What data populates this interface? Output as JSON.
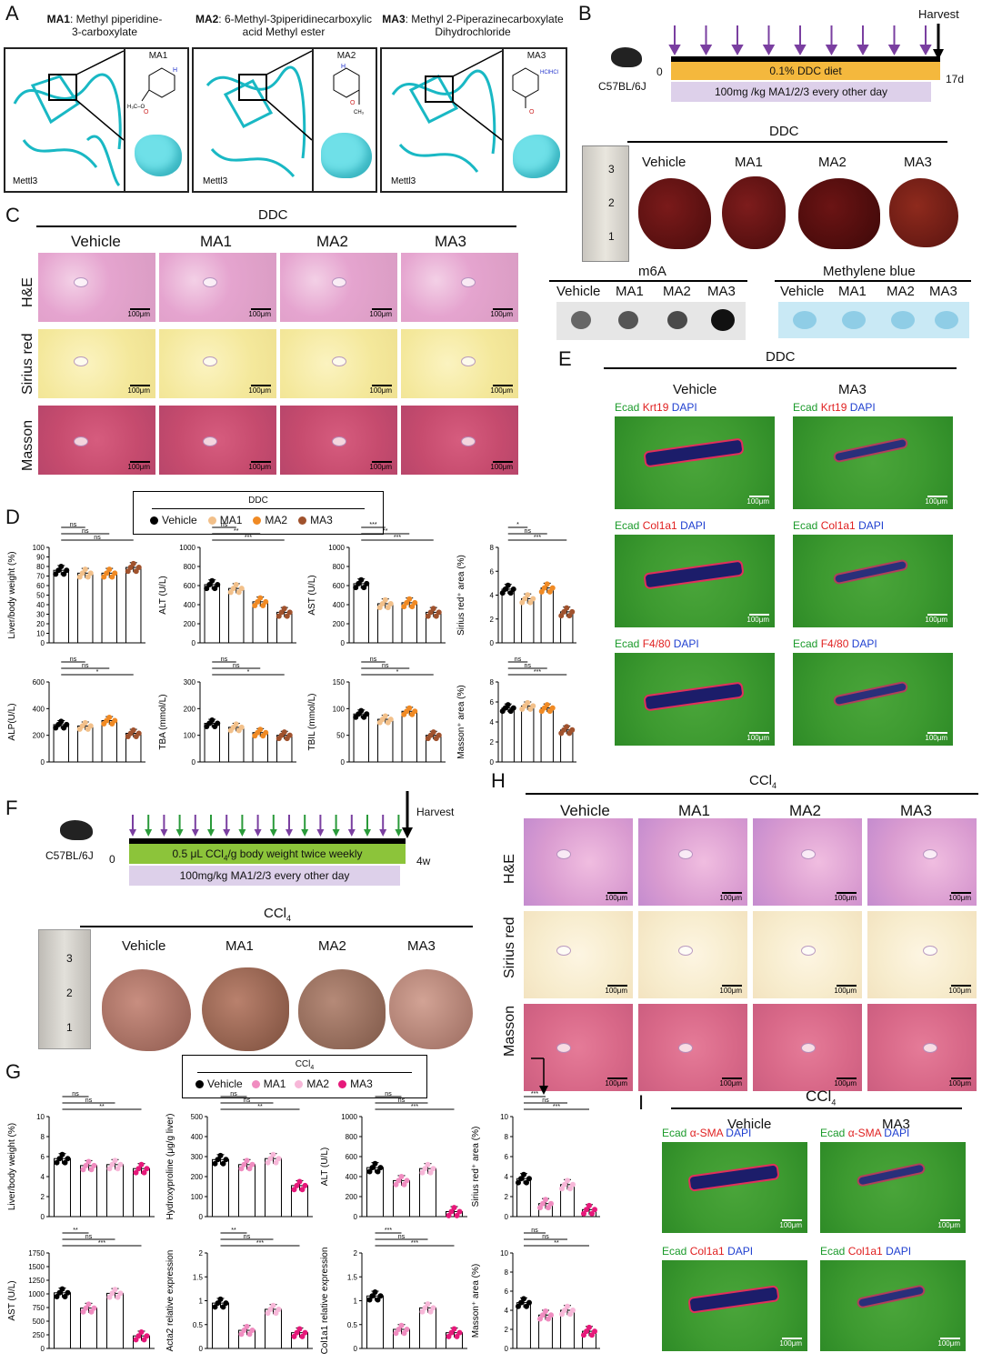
{
  "panels": {
    "A": {
      "label": "A",
      "compounds": [
        {
          "name_bold": "MA1",
          "name_rest": ": Methyl piperidine-",
          "line2": "3-carboxylate",
          "struct_label": "MA1",
          "protein": "Mettl3",
          "ester": "H₃C–O"
        },
        {
          "name_bold": "MA2",
          "name_rest": ": 6-Methyl-3piperidinecarboxylic",
          "line2": "acid Methyl ester",
          "struct_label": "MA2",
          "protein": "Mettl3",
          "ester": "CH₃"
        },
        {
          "name_bold": "MA3",
          "name_rest": ": Methyl 2-Piperazinecarboxylate",
          "line2": "Dihydrochloride",
          "struct_label": "MA3",
          "protein": "Mettl3",
          "ester": "HClHCl"
        }
      ]
    },
    "B": {
      "label": "B",
      "strain": "C57BL/6J",
      "harvest": "Harvest",
      "start": "0",
      "end": "17d",
      "diet_bar": "0.1% DDC diet",
      "treat_bar": "100mg /kg MA1/2/3   every other day",
      "group_header": "DDC",
      "groups": [
        "Vehicle",
        "MA1",
        "MA2",
        "MA3"
      ],
      "ruler_marks": [
        "3",
        "2",
        "1"
      ],
      "m6a_title": "m6A",
      "mb_title": "Methylene blue",
      "blot_labels": [
        "Vehicle",
        "MA1",
        "MA2",
        "MA3"
      ]
    },
    "C": {
      "label": "C",
      "header": "DDC",
      "groups": [
        "Vehicle",
        "MA1",
        "MA2",
        "MA3"
      ],
      "rows": [
        "H&E",
        "Sirius red",
        "Masson"
      ],
      "scale": "100μm"
    },
    "D": {
      "label": "D",
      "legend_title": "DDC",
      "legend": [
        "Vehicle",
        "MA1",
        "MA2",
        "MA3"
      ],
      "colors": [
        "#000000",
        "#f2c08a",
        "#f08a24",
        "#a0522d"
      ]
    },
    "E": {
      "label": "E",
      "header": "DDC",
      "groups": [
        "Vehicle",
        "MA3"
      ],
      "stains": [
        {
          "a": "Ecad",
          "b": "Krt19",
          "c": "DAPI"
        },
        {
          "a": "Ecad",
          "b": "Col1a1",
          "c": "DAPI"
        },
        {
          "a": "Ecad",
          "b": "F4/80",
          "c": "DAPI"
        }
      ],
      "scale": "100μm"
    },
    "F": {
      "label": "F",
      "strain": "C57BL/6J",
      "harvest": "Harvest",
      "start": "0",
      "end": "4w",
      "ccl4_bar_pre": "0.5 μL CCl",
      "ccl4_bar_sub": "4",
      "ccl4_bar_post": "/g body weight twice weekly",
      "treat_bar": "100mg/kg  MA1/2/3  every other day",
      "group_header_pre": "CCl",
      "group_header_sub": "4",
      "groups": [
        "Vehicle",
        "MA1",
        "MA2",
        "MA3"
      ],
      "ruler_marks": [
        "3",
        "2",
        "1"
      ]
    },
    "G": {
      "label": "G",
      "legend_title_pre": "CCl",
      "legend_title_sub": "4",
      "legend": [
        "Vehicle",
        "MA1",
        "MA2",
        "MA3"
      ],
      "colors": [
        "#000000",
        "#f08cc0",
        "#f7b7d8",
        "#e6197a"
      ]
    },
    "H": {
      "label": "H",
      "header_pre": "CCl",
      "header_sub": "4",
      "groups": [
        "Vehicle",
        "MA1",
        "MA2",
        "MA3"
      ],
      "rows": [
        "H&E",
        "Sirius red",
        "Masson"
      ],
      "scale": "100μm"
    },
    "I": {
      "label": "I",
      "header_pre": "CCl",
      "header_sub": "4",
      "groups": [
        "Vehicle",
        "MA3"
      ],
      "stains": [
        {
          "a": "Ecad",
          "b": "α-SMA",
          "c": "DAPI"
        },
        {
          "a": "Ecad",
          "b": "Col1a1",
          "c": "DAPI"
        }
      ],
      "scale": "100μm"
    }
  },
  "chart_data": [
    {
      "id": "D1",
      "type": "bar",
      "ylabel": "Liver/body weight (%)",
      "ylim": [
        0,
        100
      ],
      "yticks": [
        0,
        10,
        20,
        30,
        40,
        50,
        60,
        70,
        80,
        90,
        100
      ],
      "categories": [
        "Vehicle",
        "MA1",
        "MA2",
        "MA3"
      ],
      "values": [
        76,
        73,
        73,
        79
      ],
      "sig": [
        "ns",
        "ns",
        "ns"
      ]
    },
    {
      "id": "D2",
      "type": "bar",
      "ylabel": "ALT (U/L)",
      "ylim": [
        0,
        1000
      ],
      "yticks": [
        0,
        200,
        400,
        600,
        800,
        1000
      ],
      "categories": [
        "Vehicle",
        "MA1",
        "MA2",
        "MA3"
      ],
      "values": [
        610,
        570,
        430,
        320
      ],
      "sig": [
        "ns",
        "**",
        "***"
      ]
    },
    {
      "id": "D3",
      "type": "bar",
      "ylabel": "AST (U/L)",
      "ylim": [
        0,
        1000
      ],
      "yticks": [
        0,
        200,
        400,
        600,
        800,
        1000
      ],
      "categories": [
        "Vehicle",
        "MA1",
        "MA2",
        "MA3"
      ],
      "values": [
        620,
        410,
        420,
        320
      ],
      "sig": [
        "***",
        "**",
        "***"
      ]
    },
    {
      "id": "D4",
      "type": "bar",
      "ylabel": "Sirius red⁺ area (%)",
      "ylim": [
        0,
        8
      ],
      "yticks": [
        0,
        2,
        4,
        6,
        8
      ],
      "categories": [
        "Vehicle",
        "MA1",
        "MA2",
        "MA3"
      ],
      "values": [
        4.5,
        3.7,
        4.6,
        2.6
      ],
      "sig": [
        "*",
        "ns",
        "***"
      ]
    },
    {
      "id": "D5",
      "type": "bar",
      "ylabel": "ALP(U/L)",
      "ylim": [
        0,
        600
      ],
      "yticks": [
        0,
        200,
        400,
        600
      ],
      "categories": [
        "Vehicle",
        "MA1",
        "MA2",
        "MA3"
      ],
      "values": [
        280,
        270,
        310,
        215
      ],
      "sig": [
        "ns",
        "ns",
        "*"
      ]
    },
    {
      "id": "D6",
      "type": "bar",
      "ylabel": "TBA (mmol/L)",
      "ylim": [
        0,
        300
      ],
      "yticks": [
        0,
        100,
        200,
        300
      ],
      "categories": [
        "Vehicle",
        "MA1",
        "MA2",
        "MA3"
      ],
      "values": [
        145,
        130,
        110,
        100
      ],
      "sig": [
        "ns",
        "ns",
        "*"
      ]
    },
    {
      "id": "D7",
      "type": "bar",
      "ylabel": "TBIL (mmol/L)",
      "ylim": [
        0,
        150
      ],
      "yticks": [
        0,
        50,
        100,
        150
      ],
      "categories": [
        "Vehicle",
        "MA1",
        "MA2",
        "MA3"
      ],
      "values": [
        90,
        80,
        95,
        50
      ],
      "sig": [
        "ns",
        "ns",
        "*"
      ]
    },
    {
      "id": "D8",
      "type": "bar",
      "ylabel": "Masson⁺ area (%)",
      "ylim": [
        0,
        8
      ],
      "yticks": [
        0,
        2,
        4,
        6,
        8
      ],
      "categories": [
        "Vehicle",
        "MA1",
        "MA2",
        "MA3"
      ],
      "values": [
        5.4,
        5.6,
        5.4,
        3.2
      ],
      "sig": [
        "ns",
        "ns",
        "***"
      ]
    },
    {
      "id": "G1",
      "type": "bar",
      "ylabel": "Liver/body weight (%)",
      "ylim": [
        0,
        10
      ],
      "yticks": [
        0,
        2,
        4,
        6,
        8,
        10
      ],
      "categories": [
        "Vehicle",
        "MA1",
        "MA2",
        "MA3"
      ],
      "values": [
        5.8,
        5.1,
        5.2,
        4.8
      ],
      "sig": [
        "ns",
        "ns",
        "**"
      ]
    },
    {
      "id": "G2",
      "type": "bar",
      "ylabel": "Hydroxyproline (μg/g liver)",
      "ylim": [
        0,
        500
      ],
      "yticks": [
        0,
        100,
        200,
        300,
        400,
        500
      ],
      "categories": [
        "Vehicle",
        "MA1",
        "MA2",
        "MA3"
      ],
      "values": [
        285,
        260,
        290,
        155
      ],
      "sig": [
        "ns",
        "ns",
        "**"
      ]
    },
    {
      "id": "G3",
      "type": "bar",
      "ylabel": "ALT (U/L)",
      "ylim": [
        0,
        1000
      ],
      "yticks": [
        0,
        200,
        400,
        600,
        800,
        1000
      ],
      "categories": [
        "Vehicle",
        "MA1",
        "MA2",
        "MA3"
      ],
      "values": [
        490,
        360,
        480,
        50
      ],
      "sig": [
        "ns",
        "ns",
        "***"
      ]
    },
    {
      "id": "G4",
      "type": "bar",
      "ylabel": "Sirius red⁺ area (%)",
      "ylim": [
        0,
        10
      ],
      "yticks": [
        0,
        2,
        4,
        6,
        8,
        10
      ],
      "categories": [
        "Vehicle",
        "MA1",
        "MA2",
        "MA3"
      ],
      "values": [
        3.8,
        1.3,
        3.2,
        0.7
      ],
      "sig": [
        "***",
        "ns",
        "***"
      ]
    },
    {
      "id": "G5",
      "type": "bar",
      "ylabel": "AST (U/L)",
      "ylim": [
        0,
        1750
      ],
      "yticks": [
        0,
        250,
        500,
        750,
        1000,
        1250,
        1500,
        1750
      ],
      "categories": [
        "Vehicle",
        "MA1",
        "MA2",
        "MA3"
      ],
      "values": [
        1020,
        740,
        1010,
        230
      ],
      "sig": [
        "**",
        "ns",
        "***"
      ]
    },
    {
      "id": "G6",
      "type": "bar",
      "ylabel": "Acta2 relative expression",
      "ylim": [
        0,
        2.0
      ],
      "yticks": [
        0,
        0.5,
        1.0,
        1.5,
        2.0
      ],
      "categories": [
        "Vehicle",
        "MA1",
        "MA2",
        "MA3"
      ],
      "values": [
        0.95,
        0.38,
        0.82,
        0.33
      ],
      "sig": [
        "**",
        "ns",
        "***"
      ]
    },
    {
      "id": "G7",
      "type": "bar",
      "ylabel": "Col1a1 relative expression",
      "ylim": [
        0,
        2.0
      ],
      "yticks": [
        0,
        0.5,
        1.0,
        1.5,
        2.0
      ],
      "categories": [
        "Vehicle",
        "MA1",
        "MA2",
        "MA3"
      ],
      "values": [
        1.1,
        0.4,
        0.85,
        0.33
      ],
      "sig": [
        "***",
        "ns",
        "***"
      ]
    },
    {
      "id": "G8",
      "type": "bar",
      "ylabel": "Masson⁺ area (%)",
      "ylim": [
        0,
        10
      ],
      "yticks": [
        0,
        2,
        4,
        6,
        8,
        10
      ],
      "categories": [
        "Vehicle",
        "MA1",
        "MA2",
        "MA3"
      ],
      "values": [
        4.8,
        3.5,
        4.0,
        1.8
      ],
      "sig": [
        "ns",
        "ns",
        "**"
      ]
    }
  ]
}
